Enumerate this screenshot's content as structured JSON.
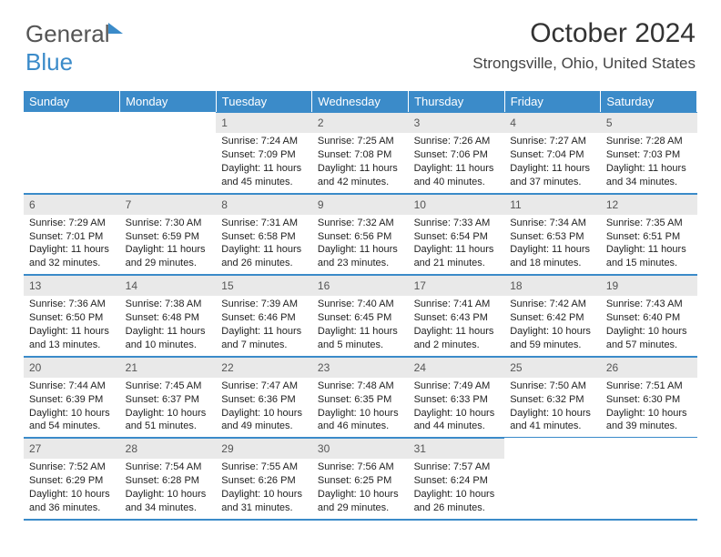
{
  "brand": {
    "part1": "General",
    "part2": "Blue"
  },
  "title": "October 2024",
  "location": "Strongsville, Ohio, United States",
  "colors": {
    "header_bg": "#3b8bc9",
    "header_text": "#ffffff",
    "daynum_bg": "#e9e9e9",
    "border": "#3b8bc9",
    "text": "#222222",
    "background": "#ffffff"
  },
  "typography": {
    "body_fontsize": 11,
    "title_fontsize": 30,
    "location_fontsize": 17,
    "dayname_fontsize": 13
  },
  "day_names": [
    "Sunday",
    "Monday",
    "Tuesday",
    "Wednesday",
    "Thursday",
    "Friday",
    "Saturday"
  ],
  "weeks": [
    [
      null,
      null,
      {
        "n": "1",
        "sr": "Sunrise: 7:24 AM",
        "ss": "Sunset: 7:09 PM",
        "dl": "Daylight: 11 hours and 45 minutes."
      },
      {
        "n": "2",
        "sr": "Sunrise: 7:25 AM",
        "ss": "Sunset: 7:08 PM",
        "dl": "Daylight: 11 hours and 42 minutes."
      },
      {
        "n": "3",
        "sr": "Sunrise: 7:26 AM",
        "ss": "Sunset: 7:06 PM",
        "dl": "Daylight: 11 hours and 40 minutes."
      },
      {
        "n": "4",
        "sr": "Sunrise: 7:27 AM",
        "ss": "Sunset: 7:04 PM",
        "dl": "Daylight: 11 hours and 37 minutes."
      },
      {
        "n": "5",
        "sr": "Sunrise: 7:28 AM",
        "ss": "Sunset: 7:03 PM",
        "dl": "Daylight: 11 hours and 34 minutes."
      }
    ],
    [
      {
        "n": "6",
        "sr": "Sunrise: 7:29 AM",
        "ss": "Sunset: 7:01 PM",
        "dl": "Daylight: 11 hours and 32 minutes."
      },
      {
        "n": "7",
        "sr": "Sunrise: 7:30 AM",
        "ss": "Sunset: 6:59 PM",
        "dl": "Daylight: 11 hours and 29 minutes."
      },
      {
        "n": "8",
        "sr": "Sunrise: 7:31 AM",
        "ss": "Sunset: 6:58 PM",
        "dl": "Daylight: 11 hours and 26 minutes."
      },
      {
        "n": "9",
        "sr": "Sunrise: 7:32 AM",
        "ss": "Sunset: 6:56 PM",
        "dl": "Daylight: 11 hours and 23 minutes."
      },
      {
        "n": "10",
        "sr": "Sunrise: 7:33 AM",
        "ss": "Sunset: 6:54 PM",
        "dl": "Daylight: 11 hours and 21 minutes."
      },
      {
        "n": "11",
        "sr": "Sunrise: 7:34 AM",
        "ss": "Sunset: 6:53 PM",
        "dl": "Daylight: 11 hours and 18 minutes."
      },
      {
        "n": "12",
        "sr": "Sunrise: 7:35 AM",
        "ss": "Sunset: 6:51 PM",
        "dl": "Daylight: 11 hours and 15 minutes."
      }
    ],
    [
      {
        "n": "13",
        "sr": "Sunrise: 7:36 AM",
        "ss": "Sunset: 6:50 PM",
        "dl": "Daylight: 11 hours and 13 minutes."
      },
      {
        "n": "14",
        "sr": "Sunrise: 7:38 AM",
        "ss": "Sunset: 6:48 PM",
        "dl": "Daylight: 11 hours and 10 minutes."
      },
      {
        "n": "15",
        "sr": "Sunrise: 7:39 AM",
        "ss": "Sunset: 6:46 PM",
        "dl": "Daylight: 11 hours and 7 minutes."
      },
      {
        "n": "16",
        "sr": "Sunrise: 7:40 AM",
        "ss": "Sunset: 6:45 PM",
        "dl": "Daylight: 11 hours and 5 minutes."
      },
      {
        "n": "17",
        "sr": "Sunrise: 7:41 AM",
        "ss": "Sunset: 6:43 PM",
        "dl": "Daylight: 11 hours and 2 minutes."
      },
      {
        "n": "18",
        "sr": "Sunrise: 7:42 AM",
        "ss": "Sunset: 6:42 PM",
        "dl": "Daylight: 10 hours and 59 minutes."
      },
      {
        "n": "19",
        "sr": "Sunrise: 7:43 AM",
        "ss": "Sunset: 6:40 PM",
        "dl": "Daylight: 10 hours and 57 minutes."
      }
    ],
    [
      {
        "n": "20",
        "sr": "Sunrise: 7:44 AM",
        "ss": "Sunset: 6:39 PM",
        "dl": "Daylight: 10 hours and 54 minutes."
      },
      {
        "n": "21",
        "sr": "Sunrise: 7:45 AM",
        "ss": "Sunset: 6:37 PM",
        "dl": "Daylight: 10 hours and 51 minutes."
      },
      {
        "n": "22",
        "sr": "Sunrise: 7:47 AM",
        "ss": "Sunset: 6:36 PM",
        "dl": "Daylight: 10 hours and 49 minutes."
      },
      {
        "n": "23",
        "sr": "Sunrise: 7:48 AM",
        "ss": "Sunset: 6:35 PM",
        "dl": "Daylight: 10 hours and 46 minutes."
      },
      {
        "n": "24",
        "sr": "Sunrise: 7:49 AM",
        "ss": "Sunset: 6:33 PM",
        "dl": "Daylight: 10 hours and 44 minutes."
      },
      {
        "n": "25",
        "sr": "Sunrise: 7:50 AM",
        "ss": "Sunset: 6:32 PM",
        "dl": "Daylight: 10 hours and 41 minutes."
      },
      {
        "n": "26",
        "sr": "Sunrise: 7:51 AM",
        "ss": "Sunset: 6:30 PM",
        "dl": "Daylight: 10 hours and 39 minutes."
      }
    ],
    [
      {
        "n": "27",
        "sr": "Sunrise: 7:52 AM",
        "ss": "Sunset: 6:29 PM",
        "dl": "Daylight: 10 hours and 36 minutes."
      },
      {
        "n": "28",
        "sr": "Sunrise: 7:54 AM",
        "ss": "Sunset: 6:28 PM",
        "dl": "Daylight: 10 hours and 34 minutes."
      },
      {
        "n": "29",
        "sr": "Sunrise: 7:55 AM",
        "ss": "Sunset: 6:26 PM",
        "dl": "Daylight: 10 hours and 31 minutes."
      },
      {
        "n": "30",
        "sr": "Sunrise: 7:56 AM",
        "ss": "Sunset: 6:25 PM",
        "dl": "Daylight: 10 hours and 29 minutes."
      },
      {
        "n": "31",
        "sr": "Sunrise: 7:57 AM",
        "ss": "Sunset: 6:24 PM",
        "dl": "Daylight: 10 hours and 26 minutes."
      },
      null,
      null
    ]
  ]
}
